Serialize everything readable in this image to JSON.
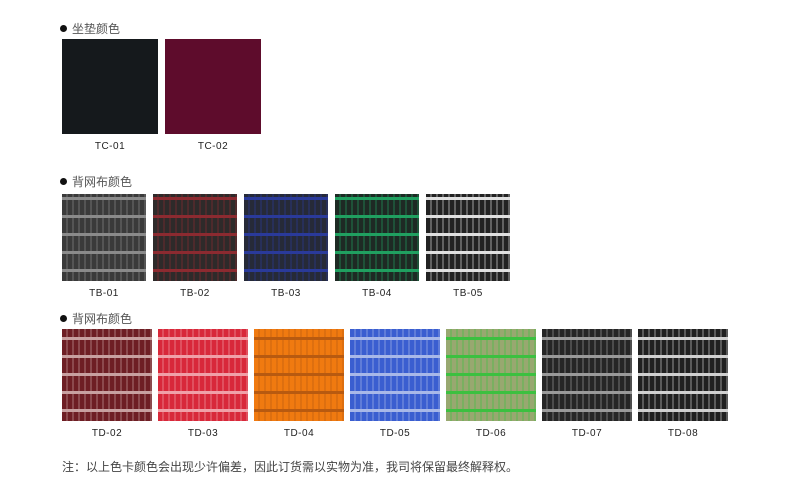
{
  "sections": [
    {
      "title": "坐垫颜色",
      "items": [
        {
          "code": "TC-01",
          "color": "#15191c"
        },
        {
          "code": "TC-02",
          "color": "#5e0c2c"
        }
      ]
    },
    {
      "title": "背网布颜色",
      "items": [
        {
          "code": "TB-01",
          "color": "#3a3a3a",
          "accent": "#8a8a8a"
        },
        {
          "code": "TB-02",
          "color": "#2e2a2a",
          "accent": "#8c2a30"
        },
        {
          "code": "TB-03",
          "color": "#262a38",
          "accent": "#2a3a9a"
        },
        {
          "code": "TB-04",
          "color": "#1e2a24",
          "accent": "#20a060"
        },
        {
          "code": "TB-05",
          "color": "#222",
          "accent": "#e0e0e0"
        }
      ]
    },
    {
      "title": "背网布颜色",
      "items": [
        {
          "code": "TD-02",
          "color": "#6e1e24",
          "accent": "#c8a0a0"
        },
        {
          "code": "TD-03",
          "color": "#d8283a",
          "accent": "#f0a0a8"
        },
        {
          "code": "TD-04",
          "color": "#f07a10",
          "accent": "#b85a10"
        },
        {
          "code": "TD-05",
          "color": "#3a5ed0",
          "accent": "#a8b8e8"
        },
        {
          "code": "TD-06",
          "color": "#98a870",
          "accent": "#3cc040"
        },
        {
          "code": "TD-07",
          "color": "#262626",
          "accent": "#9a9a9a"
        },
        {
          "code": "TD-08",
          "color": "#202020",
          "accent": "#d0d0d0"
        }
      ]
    }
  ],
  "note": "注：以上色卡颜色会出现少许偏差，因此订货需以实物为准，我司将保留最终解释权。"
}
